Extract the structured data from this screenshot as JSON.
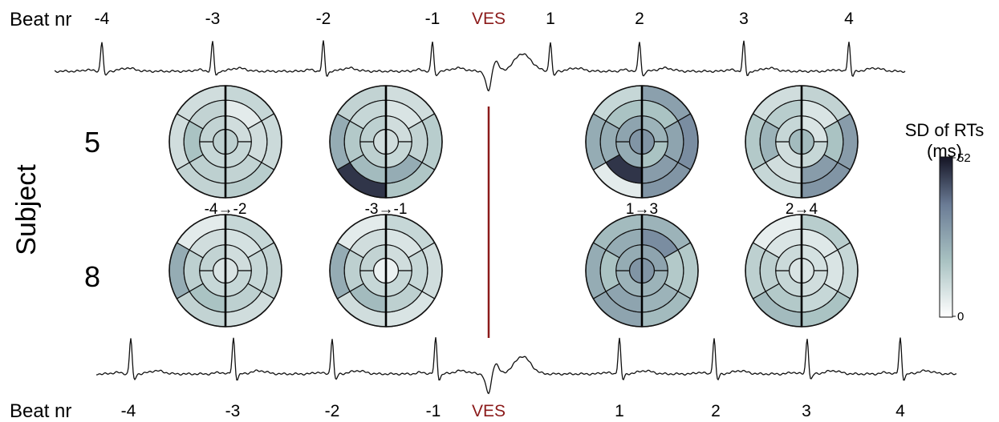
{
  "top_axis": {
    "label": "Beat nr",
    "beats": [
      "-4",
      "-3",
      "-2",
      "-1",
      "VES",
      "1",
      "2",
      "3",
      "4"
    ]
  },
  "bottom_axis": {
    "label": "Beat nr",
    "beats": [
      "-4",
      "-3",
      "-2",
      "-1",
      "VES",
      "1",
      "2",
      "3",
      "4"
    ]
  },
  "ves_color": "#8b1a1a",
  "y_axis_label": "Subject",
  "subjects": [
    "5",
    "8"
  ],
  "comparisons": [
    "-4→-2",
    "-3→-1",
    "1→3",
    "2→4"
  ],
  "colorbar": {
    "title_line1": "SD of RTs",
    "title_line2": "(ms)",
    "max_label": "52",
    "min_label": "0",
    "min_value": 0,
    "max_value": 52,
    "colors": [
      "#ffffff",
      "#a9c2c2",
      "#6b7c96",
      "#141424"
    ]
  },
  "bullseye_segment_order": "segments 1-6 basal, 7-12 mid, 13-16 apical, 17 apex; starting at top and going clockwise",
  "bullseyes": {
    "subject_5": [
      [
        12,
        11,
        15,
        13,
        10,
        10,
        6,
        10,
        13,
        14,
        18,
        13,
        10,
        12,
        12,
        13,
        14
      ],
      [
        10,
        15,
        17,
        47,
        24,
        13,
        8,
        13,
        24,
        20,
        16,
        12,
        10,
        12,
        14,
        14,
        10
      ],
      [
        27,
        32,
        30,
        6,
        24,
        12,
        18,
        26,
        28,
        47,
        24,
        18,
        22,
        18,
        24,
        26,
        30
      ],
      [
        13,
        28,
        30,
        12,
        16,
        10,
        8,
        18,
        28,
        10,
        22,
        15,
        8,
        12,
        10,
        12,
        20
      ]
    ],
    "subject_8": [
      [
        12,
        13,
        10,
        13,
        24,
        6,
        9,
        12,
        14,
        18,
        14,
        10,
        10,
        12,
        12,
        13,
        8
      ],
      [
        12,
        10,
        8,
        10,
        24,
        6,
        8,
        12,
        14,
        20,
        14,
        10,
        10,
        12,
        12,
        13,
        4
      ],
      [
        22,
        16,
        20,
        26,
        24,
        20,
        32,
        16,
        22,
        26,
        18,
        24,
        26,
        22,
        22,
        24,
        30
      ],
      [
        15,
        12,
        18,
        20,
        14,
        5,
        7,
        8,
        12,
        16,
        14,
        8,
        9,
        10,
        12,
        11,
        8
      ]
    ]
  }
}
